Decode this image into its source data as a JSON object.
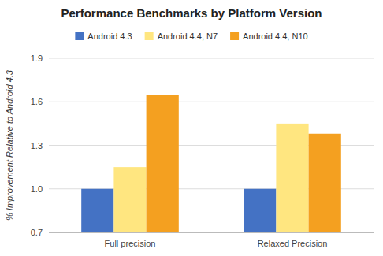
{
  "chart_data": {
    "type": "bar",
    "title": "Performance Benchmarks by Platform Version",
    "y_label": "% Improvement Relative to Android 4.3",
    "categories": [
      "Full precision",
      "Relaxed Precision"
    ],
    "series": [
      {
        "name": "Android 4.3",
        "color": "#4472C4",
        "values": [
          1.0,
          1.0
        ]
      },
      {
        "name": "Android 4.4, N7",
        "color": "#FFE680",
        "values": [
          1.15,
          1.45
        ]
      },
      {
        "name": "Android 4.4, N10",
        "color": "#F4A020",
        "values": [
          1.65,
          1.38
        ]
      }
    ],
    "ylim": [
      0.7,
      1.9
    ],
    "yticks": [
      0.7,
      {
        "value": 1.0,
        "label": "1.0"
      },
      1.3,
      1.6,
      1.9
    ],
    "grid": true,
    "legend": "top"
  }
}
